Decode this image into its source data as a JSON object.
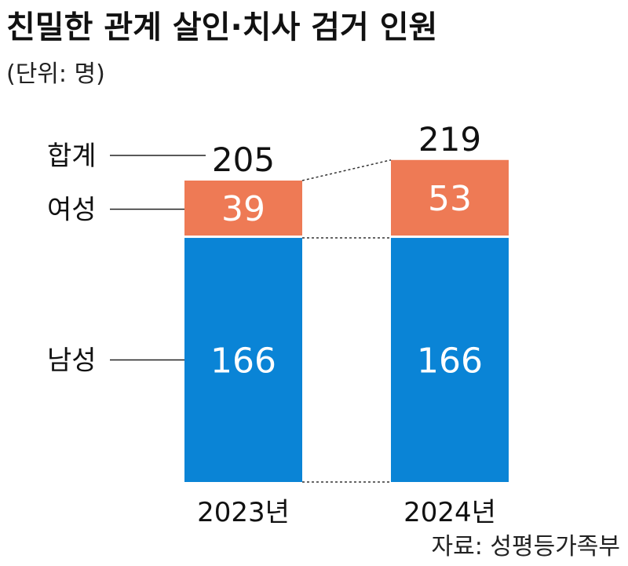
{
  "chart_data": {
    "type": "bar",
    "stacked": true,
    "title": "친밀한 관계 살인·치사 검거 인원",
    "unit_label": "(단위: 명)",
    "categories": [
      "2023년",
      "2024년"
    ],
    "series": [
      {
        "name": "남성",
        "values": [
          166,
          166
        ],
        "color": "#0a84d6"
      },
      {
        "name": "여성",
        "values": [
          39,
          53
        ],
        "color": "#ee7a55"
      }
    ],
    "totals": [
      205,
      219
    ],
    "total_label": "합계",
    "source": "자료: 성평등가족부"
  }
}
